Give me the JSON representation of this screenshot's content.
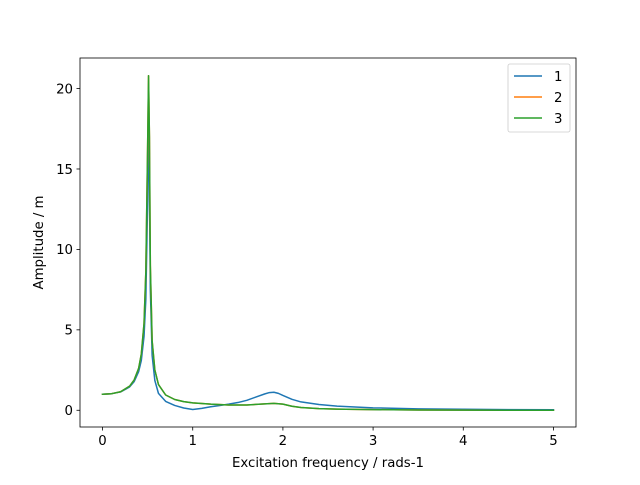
{
  "chart_data": {
    "type": "line",
    "xlabel": "Excitation frequency / rads-1",
    "ylabel": "Amplitude / m",
    "xlim": [
      -0.25,
      5.25
    ],
    "ylim": [
      -1.04,
      21.9
    ],
    "xticks": [
      "0",
      "1",
      "2",
      "3",
      "4",
      "5"
    ],
    "yticks": [
      "0",
      "5",
      "10",
      "15",
      "20"
    ],
    "xtick_values": [
      0,
      1,
      2,
      3,
      4,
      5
    ],
    "ytick_values": [
      0,
      5,
      10,
      15,
      20
    ],
    "grid": false,
    "legend_position": "top-right",
    "series": [
      {
        "name": "1",
        "color": "#1f77b4",
        "x": [
          0,
          0.1,
          0.2,
          0.3,
          0.35,
          0.4,
          0.43,
          0.46,
          0.48,
          0.5,
          0.51,
          0.52,
          0.53,
          0.55,
          0.58,
          0.62,
          0.7,
          0.8,
          0.9,
          1.0,
          1.1,
          1.2,
          1.3,
          1.4,
          1.5,
          1.6,
          1.7,
          1.8,
          1.85,
          1.9,
          1.95,
          2.0,
          2.1,
          2.2,
          2.4,
          2.6,
          3.0,
          3.5,
          4.0,
          4.5,
          5.0
        ],
        "y": [
          1.0,
          1.03,
          1.14,
          1.45,
          1.78,
          2.4,
          3.1,
          4.6,
          6.9,
          13.0,
          19.5,
          13.5,
          7.5,
          3.4,
          1.85,
          1.05,
          0.55,
          0.3,
          0.14,
          0.05,
          0.12,
          0.22,
          0.3,
          0.38,
          0.48,
          0.62,
          0.82,
          1.02,
          1.1,
          1.12,
          1.05,
          0.92,
          0.68,
          0.52,
          0.36,
          0.26,
          0.15,
          0.09,
          0.06,
          0.04,
          0.03
        ]
      },
      {
        "name": "2",
        "color": "#ff7f0e",
        "x": [
          0,
          0.1,
          0.2,
          0.3,
          0.35,
          0.4,
          0.43,
          0.46,
          0.48,
          0.5,
          0.51,
          0.52,
          0.53,
          0.55,
          0.58,
          0.62,
          0.7,
          0.8,
          0.9,
          1.0,
          1.2,
          1.4,
          1.6,
          1.8,
          1.9,
          2.0,
          2.1,
          2.2,
          2.4,
          2.6,
          3.0,
          3.5,
          4.0,
          4.5,
          5.0
        ],
        "y": [
          1.0,
          1.03,
          1.15,
          1.5,
          1.88,
          2.6,
          3.5,
          5.4,
          8.6,
          16.5,
          20.8,
          17.0,
          9.0,
          4.3,
          2.5,
          1.6,
          0.95,
          0.67,
          0.54,
          0.46,
          0.38,
          0.33,
          0.33,
          0.4,
          0.43,
          0.38,
          0.25,
          0.17,
          0.1,
          0.07,
          0.04,
          0.02,
          0.01,
          0.005,
          0.002
        ]
      },
      {
        "name": "3",
        "color": "#2ca02c",
        "x": [
          0,
          0.1,
          0.2,
          0.3,
          0.35,
          0.4,
          0.43,
          0.46,
          0.48,
          0.5,
          0.51,
          0.52,
          0.53,
          0.55,
          0.58,
          0.62,
          0.7,
          0.8,
          0.9,
          1.0,
          1.2,
          1.4,
          1.6,
          1.8,
          1.9,
          2.0,
          2.1,
          2.2,
          2.4,
          2.6,
          3.0,
          3.5,
          4.0,
          4.5,
          5.0
        ],
        "y": [
          1.0,
          1.03,
          1.15,
          1.5,
          1.88,
          2.6,
          3.5,
          5.4,
          8.6,
          16.5,
          20.8,
          17.0,
          9.0,
          4.3,
          2.5,
          1.6,
          0.95,
          0.67,
          0.54,
          0.46,
          0.38,
          0.33,
          0.33,
          0.4,
          0.43,
          0.38,
          0.25,
          0.17,
          0.1,
          0.07,
          0.04,
          0.02,
          0.01,
          0.005,
          0.002
        ]
      }
    ]
  }
}
